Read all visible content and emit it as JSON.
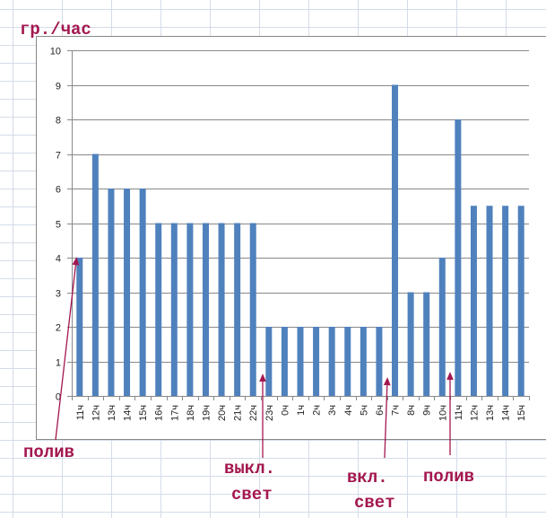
{
  "chart_data": {
    "type": "bar",
    "title": "",
    "ylabel": "гр./час",
    "xlabel": "",
    "ylim": [
      0,
      10
    ],
    "yticks": [
      "0",
      "1",
      "2",
      "3",
      "4",
      "5",
      "6",
      "7",
      "8",
      "9",
      "10"
    ],
    "grid": true,
    "categories": [
      "11ч",
      "12ч",
      "13ч",
      "14ч",
      "15ч",
      "16ч",
      "17ч",
      "18ч",
      "19ч",
      "20ч",
      "21ч",
      "22ч",
      "23ч",
      "0ч",
      "1ч",
      "2ч",
      "3ч",
      "4ч",
      "5ч",
      "6ч",
      "7ч",
      "8ч",
      "9ч",
      "10ч",
      "11ч",
      "12ч",
      "13ч",
      "14ч",
      "15ч"
    ],
    "values": [
      4,
      7,
      6,
      6,
      6,
      5,
      5,
      5,
      5,
      5,
      5,
      5,
      2,
      2,
      2,
      2,
      2,
      2,
      2,
      2,
      9,
      3,
      3,
      4,
      8,
      5.5,
      5.5,
      5.5,
      5.5
    ],
    "bar_color": "#4f81bd",
    "annotations": [
      {
        "text": "полив",
        "category_index": 0
      },
      {
        "text": "выкл.",
        "text2": "свет",
        "category_index": 12
      },
      {
        "text": "вкл.",
        "text2": "свет",
        "category_index": 20
      },
      {
        "text": "полив",
        "category_index": 24
      }
    ],
    "annotation_color": "#a3174f"
  }
}
